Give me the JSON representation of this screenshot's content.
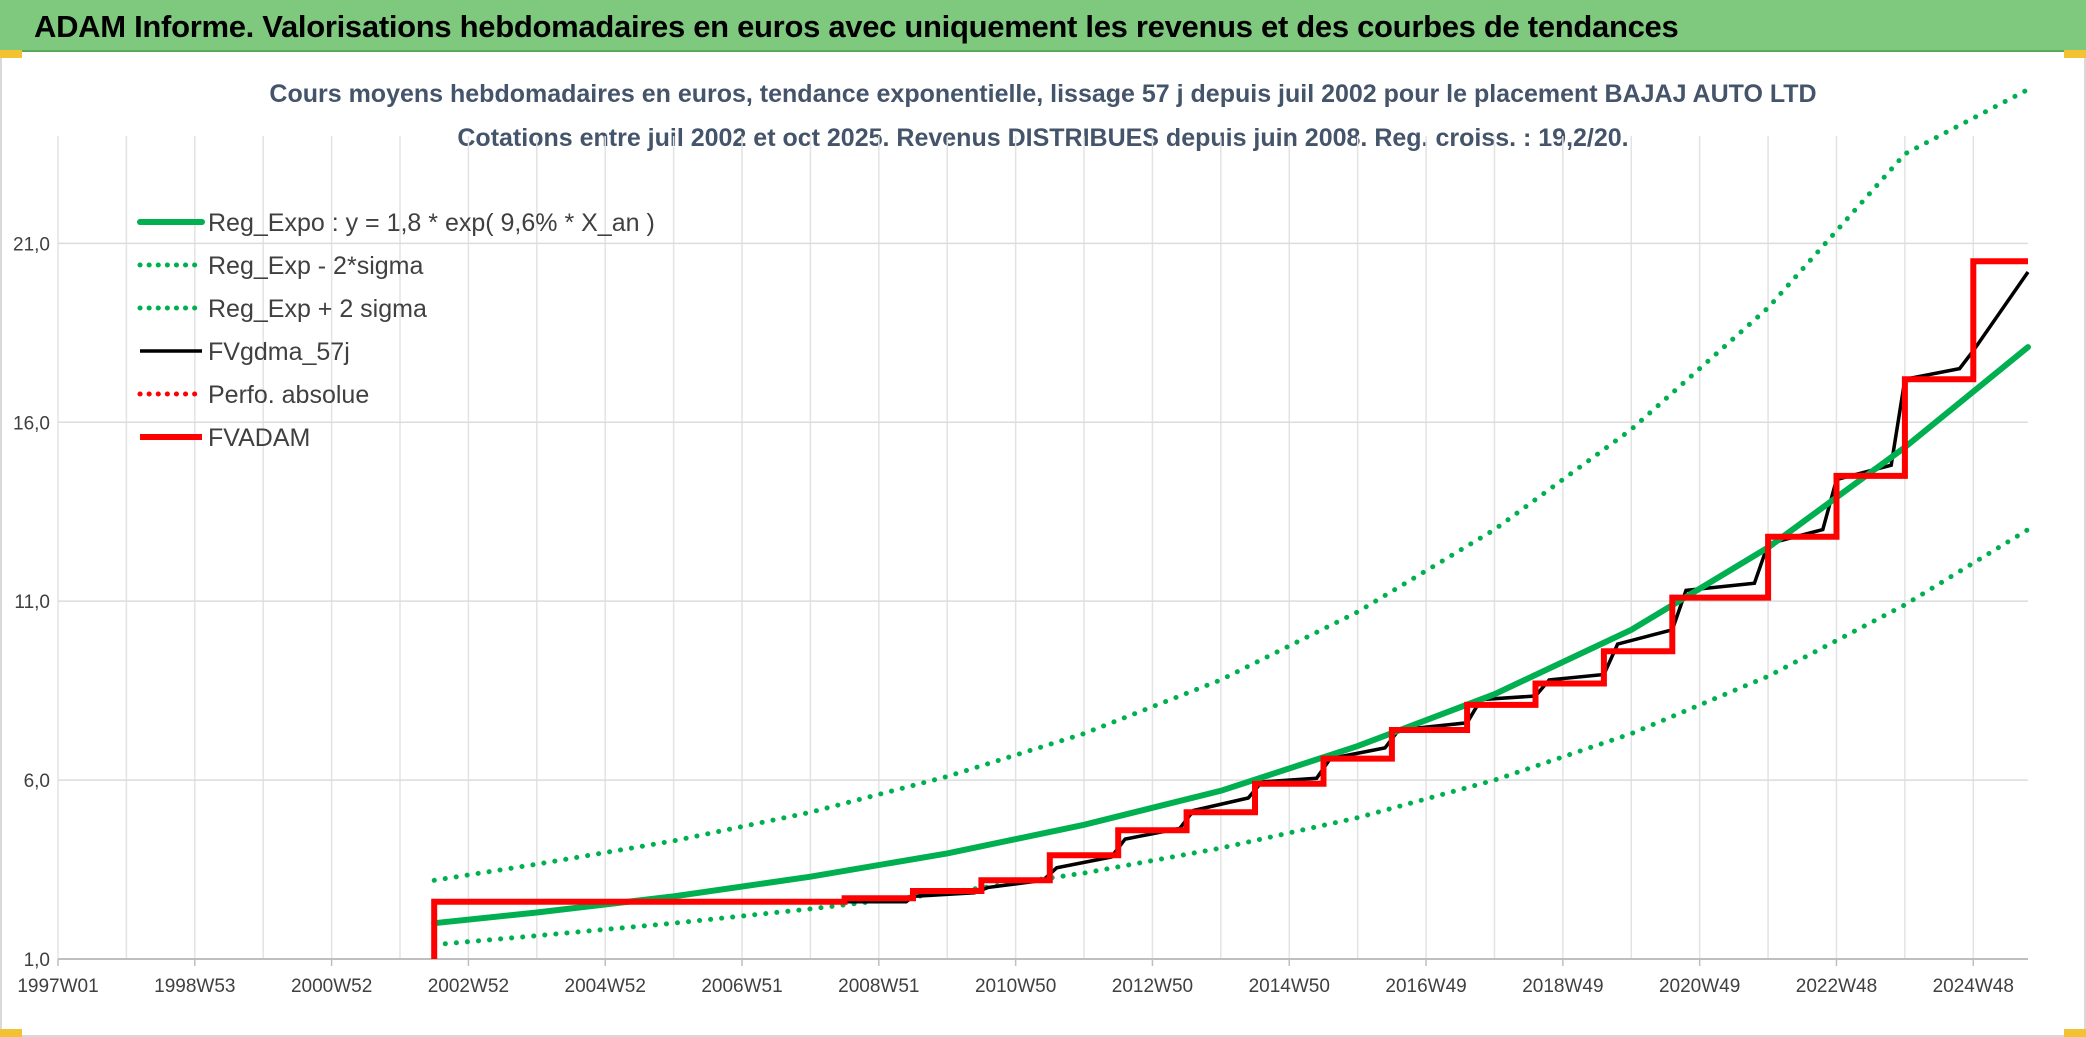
{
  "page": {
    "title": "ADAM Informe. Valorisations hebdomadaires en euros avec uniquement les revenus et des courbes de tendances"
  },
  "chart_data": {
    "type": "line",
    "title": "Cours moyens hebdomadaires en euros, tendance exponentielle, lissage 57 j depuis juil 2002 pour le placement BAJAJ AUTO LTD",
    "subtitle": "Cotations entre juil 2002 et oct 2025. Revenus DISTRIBUES depuis juin 2008. Reg. croiss. : 19,2/20.",
    "x_range": [
      1997.0,
      2025.8
    ],
    "x_ticks": [
      {
        "label": "1997W01",
        "x": 1997.0
      },
      {
        "label": "1998W53",
        "x": 1999.0
      },
      {
        "label": "2000W52",
        "x": 2001.0
      },
      {
        "label": "2002W52",
        "x": 2003.0
      },
      {
        "label": "2004W52",
        "x": 2005.0
      },
      {
        "label": "2006W51",
        "x": 2007.0
      },
      {
        "label": "2008W51",
        "x": 2009.0
      },
      {
        "label": "2010W50",
        "x": 2011.0
      },
      {
        "label": "2012W50",
        "x": 2013.0
      },
      {
        "label": "2014W50",
        "x": 2015.0
      },
      {
        "label": "2016W49",
        "x": 2017.0
      },
      {
        "label": "2018W49",
        "x": 2019.0
      },
      {
        "label": "2020W49",
        "x": 2021.0
      },
      {
        "label": "2022W48",
        "x": 2023.0
      },
      {
        "label": "2024W48",
        "x": 2025.0
      }
    ],
    "ylim": [
      1.0,
      24.0
    ],
    "y_ticks": [
      {
        "label": "1,0",
        "value": 1.0
      },
      {
        "label": "6,0",
        "value": 6.0
      },
      {
        "label": "11,0",
        "value": 11.0
      },
      {
        "label": "16,0",
        "value": 16.0
      },
      {
        "label": "21,0",
        "value": 21.0
      }
    ],
    "grid": true,
    "legend_position": "top-left",
    "series": [
      {
        "name": "Reg_Expo : y = 1,8 * exp( 9,6% *  X_an )",
        "color": "#00b050",
        "style": "solid",
        "x": [
          2002.5,
          2004,
          2006,
          2008,
          2010,
          2012,
          2014,
          2016,
          2018,
          2020,
          2022,
          2024,
          2025.8
        ],
        "values": [
          2.0,
          2.3,
          2.75,
          3.3,
          3.95,
          4.75,
          5.7,
          6.95,
          8.4,
          10.2,
          12.5,
          15.3,
          18.1
        ]
      },
      {
        "name": "Reg_Exp - 2*sigma",
        "color": "#00b050",
        "style": "dotted",
        "x": [
          2002.5,
          2004,
          2006,
          2008,
          2010,
          2012,
          2014,
          2016,
          2018,
          2020,
          2022,
          2024,
          2025.8
        ],
        "values": [
          1.4,
          1.65,
          2.0,
          2.4,
          2.85,
          3.4,
          4.1,
          4.95,
          6.0,
          7.3,
          8.9,
          10.9,
          13.0
        ]
      },
      {
        "name": "Reg_Exp + 2 sigma",
        "color": "#00b050",
        "style": "dotted",
        "x": [
          2002.5,
          2004,
          2006,
          2008,
          2010,
          2012,
          2014,
          2016,
          2018,
          2020,
          2022,
          2024,
          2025.8
        ],
        "values": [
          3.2,
          3.65,
          4.3,
          5.1,
          6.1,
          7.3,
          8.8,
          10.7,
          13.0,
          15.8,
          19.2,
          23.5,
          25.3
        ]
      },
      {
        "name": "FVgdma_57j",
        "color": "#000000",
        "style": "solid",
        "x": [
          2002.5,
          2002.6,
          2009.4,
          2009.5,
          2010.4,
          2010.6,
          2011.4,
          2011.6,
          2012.4,
          2012.6,
          2013.4,
          2013.6,
          2014.4,
          2014.6,
          2015.4,
          2015.6,
          2016.4,
          2016.6,
          2017.6,
          2017.8,
          2018.6,
          2018.8,
          2019.6,
          2019.8,
          2020.6,
          2020.8,
          2021.8,
          2022.0,
          2022.8,
          2023.0,
          2023.8,
          2024.0,
          2024.8,
          2025.0,
          2025.8
        ],
        "values": [
          2.6,
          2.6,
          2.6,
          2.75,
          2.85,
          3.0,
          3.2,
          3.55,
          3.85,
          4.35,
          4.65,
          5.15,
          5.5,
          5.95,
          6.05,
          6.6,
          6.9,
          7.4,
          7.6,
          8.25,
          8.35,
          8.8,
          8.95,
          9.8,
          10.2,
          11.3,
          11.5,
          12.6,
          13.0,
          14.4,
          14.8,
          17.2,
          17.5,
          18.0,
          20.2
        ]
      },
      {
        "name": "Perfo. absolue",
        "color": "#ff0000",
        "style": "dotted",
        "x": [],
        "values": []
      },
      {
        "name": "FVADAM",
        "color": "#ff0000",
        "style": "solid-thick",
        "x": [
          2002.5,
          2002.5,
          2008.5,
          2008.5,
          2009.5,
          2009.5,
          2010.5,
          2010.5,
          2011.5,
          2011.5,
          2012.5,
          2012.5,
          2013.5,
          2013.5,
          2014.5,
          2014.5,
          2015.5,
          2015.5,
          2016.5,
          2016.5,
          2017.6,
          2017.6,
          2018.6,
          2018.6,
          2019.6,
          2019.6,
          2020.6,
          2020.6,
          2021.2,
          2021.2,
          2022.0,
          2022.0,
          2023.0,
          2023.0,
          2024.0,
          2024.0,
          2025.0,
          2025.0,
          2025.8
        ],
        "values": [
          1.0,
          2.6,
          2.6,
          2.7,
          2.7,
          2.9,
          2.9,
          3.2,
          3.2,
          3.9,
          3.9,
          4.6,
          4.6,
          5.1,
          5.1,
          5.9,
          5.9,
          6.6,
          6.6,
          7.4,
          7.4,
          8.1,
          8.1,
          8.7,
          8.7,
          9.6,
          9.6,
          11.1,
          11.1,
          11.1,
          11.1,
          12.8,
          12.8,
          14.5,
          14.5,
          17.2,
          17.2,
          20.5,
          20.5
        ]
      }
    ]
  }
}
